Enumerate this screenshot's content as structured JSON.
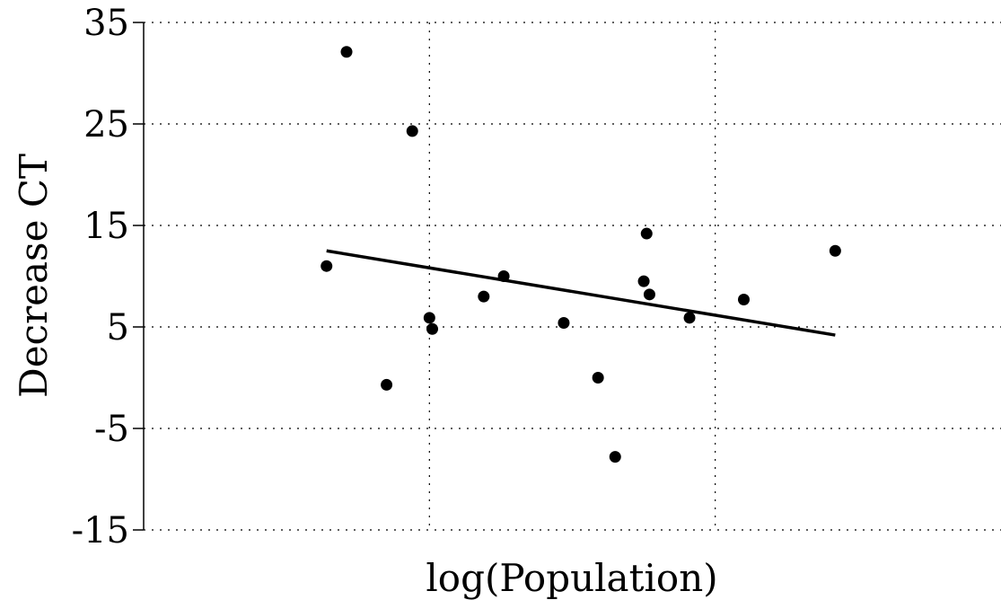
{
  "chart_data": {
    "type": "scatter",
    "xlabel": "log(Population)",
    "ylabel": "Decrease CT",
    "title": "",
    "xlim": [
      0,
      3
    ],
    "ylim": [
      -15,
      35
    ],
    "x_gridlines": [
      1,
      2
    ],
    "y_ticks": [
      {
        "value": -15,
        "label": "-15"
      },
      {
        "value": -5,
        "label": "-5"
      },
      {
        "value": 5,
        "label": "5"
      },
      {
        "value": 15,
        "label": "15"
      },
      {
        "value": 25,
        "label": "25"
      },
      {
        "value": 35,
        "label": "35"
      }
    ],
    "grid": true,
    "points": [
      {
        "x": 0.64,
        "y": 11.0
      },
      {
        "x": 0.71,
        "y": 32.1
      },
      {
        "x": 0.85,
        "y": -0.7
      },
      {
        "x": 0.94,
        "y": 24.3
      },
      {
        "x": 1.0,
        "y": 5.9
      },
      {
        "x": 1.01,
        "y": 4.8
      },
      {
        "x": 1.19,
        "y": 8.0
      },
      {
        "x": 1.26,
        "y": 10.0
      },
      {
        "x": 1.47,
        "y": 5.4
      },
      {
        "x": 1.59,
        "y": 0.0
      },
      {
        "x": 1.65,
        "y": -7.8
      },
      {
        "x": 1.75,
        "y": 9.5
      },
      {
        "x": 1.76,
        "y": 14.2
      },
      {
        "x": 1.77,
        "y": 8.2
      },
      {
        "x": 1.91,
        "y": 5.9
      },
      {
        "x": 2.1,
        "y": 7.7
      },
      {
        "x": 2.42,
        "y": 12.5
      }
    ],
    "trendline": {
      "x": [
        0.64,
        2.42
      ],
      "y": [
        12.5,
        4.2
      ]
    }
  }
}
